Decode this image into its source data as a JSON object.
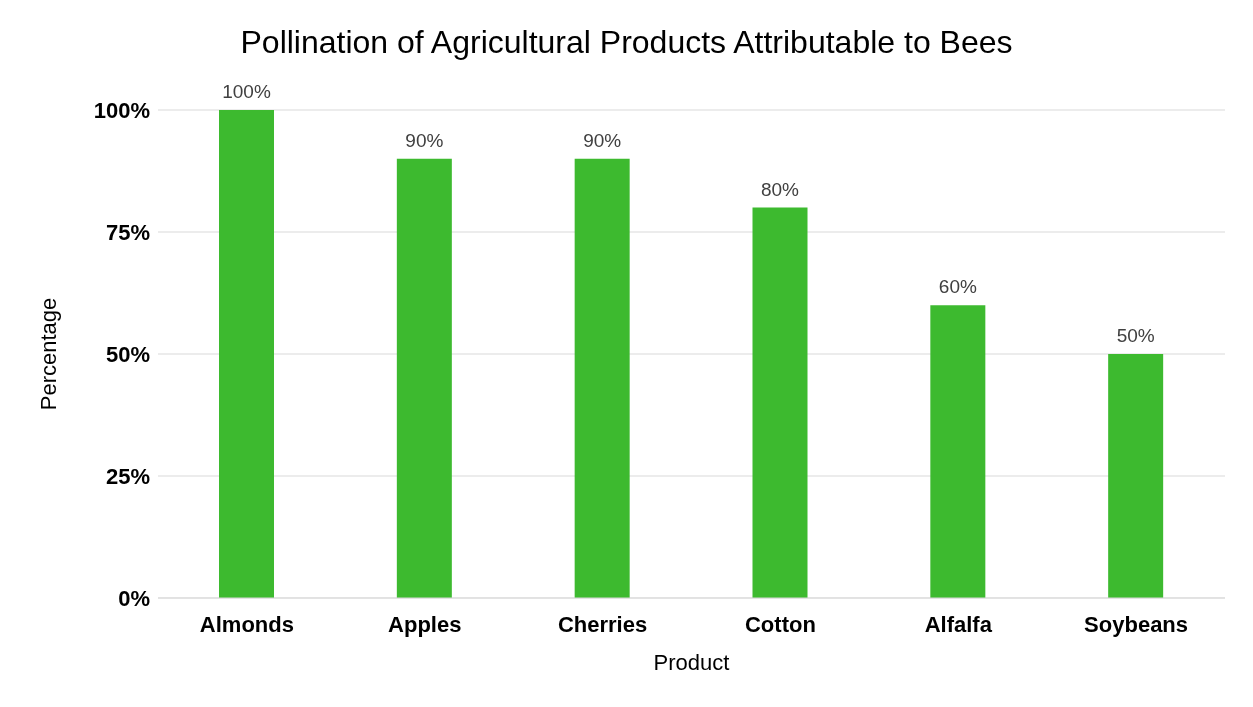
{
  "chart_data": {
    "type": "bar",
    "title": "Pollination of Agricultural Products Attributable to Bees",
    "xlabel": "Product",
    "ylabel": "Percentage",
    "categories": [
      "Almonds",
      "Apples",
      "Cherries",
      "Cotton",
      "Alfalfa",
      "Soybeans"
    ],
    "values": [
      100,
      90,
      90,
      80,
      60,
      50
    ],
    "value_labels": [
      "100%",
      "90%",
      "90%",
      "80%",
      "60%",
      "50%"
    ],
    "color": "#3dba2f",
    "ylim": [
      0,
      100
    ],
    "yticks": [
      {
        "value": 0,
        "label": "0%"
      },
      {
        "value": 25,
        "label": "25%"
      },
      {
        "value": 50,
        "label": "50%"
      },
      {
        "value": 75,
        "label": "75%"
      },
      {
        "value": 100,
        "label": "100%"
      }
    ],
    "grid": "y",
    "legend": false
  }
}
